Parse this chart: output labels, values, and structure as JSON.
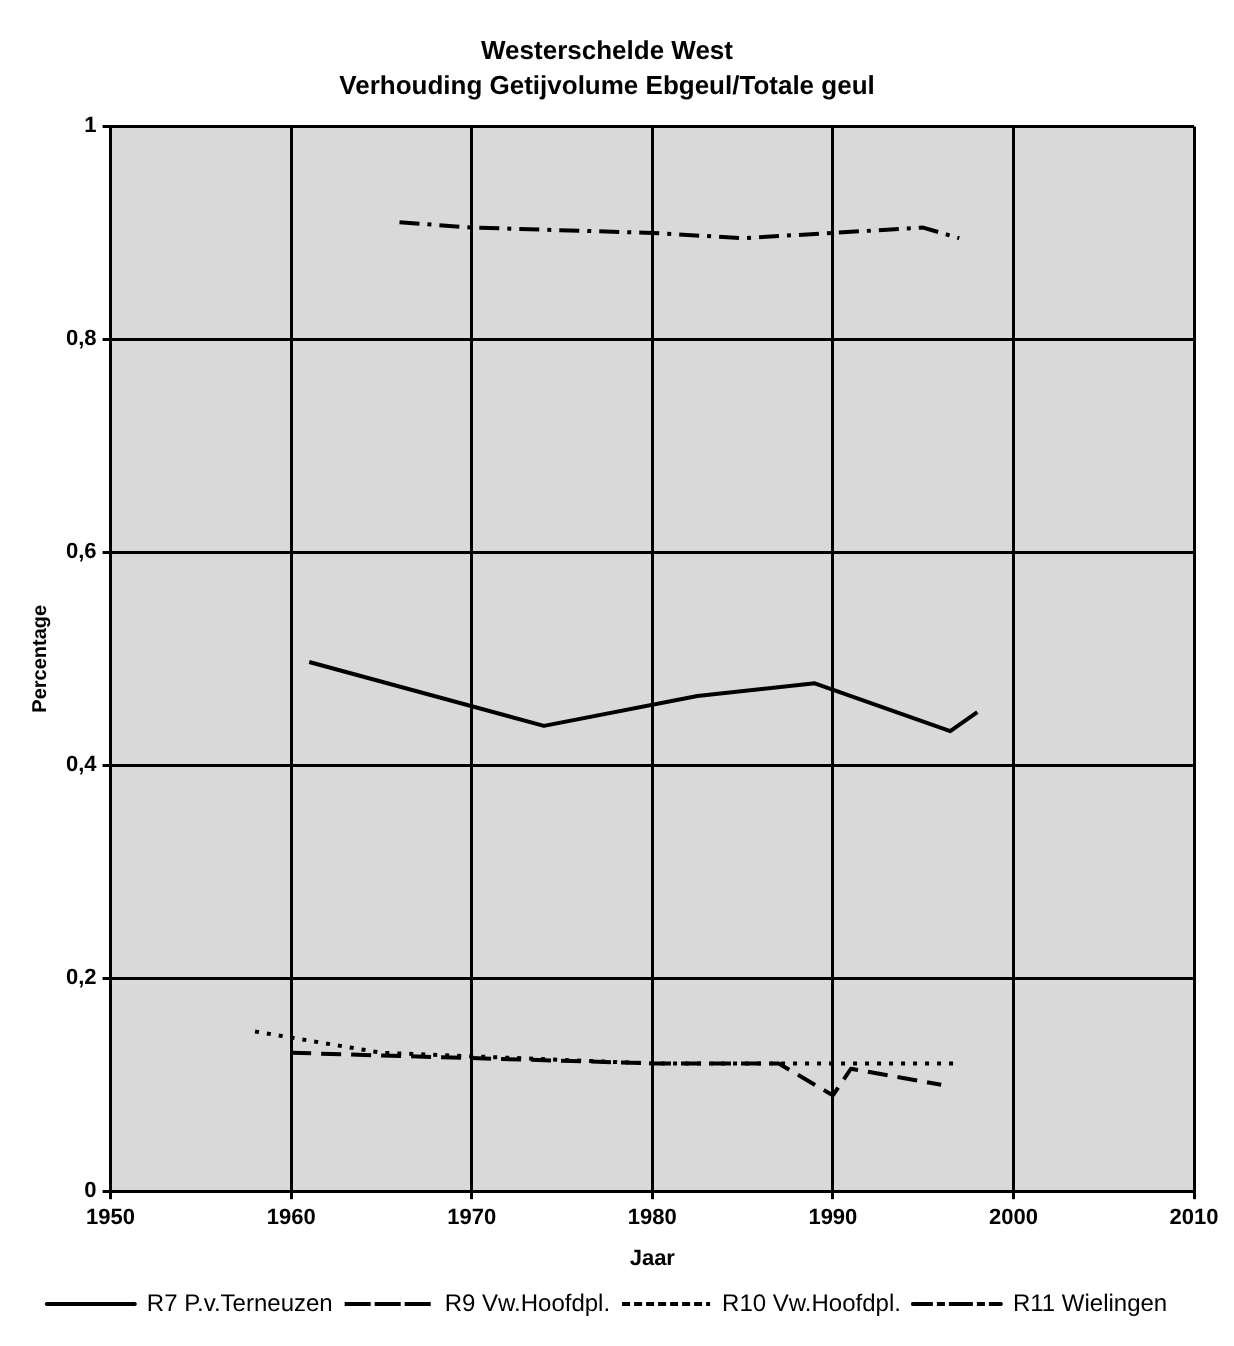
{
  "chart_data": {
    "type": "line",
    "title": "Westerschelde West",
    "subtitle": "Verhouding Getijvolume Ebgeul/Totale geul",
    "xlabel": "Jaar",
    "ylabel": "Percentage",
    "xlim": [
      1950,
      2010
    ],
    "xticks": [
      1950,
      1960,
      1970,
      1980,
      1990,
      2000,
      2010
    ],
    "ylim": [
      0,
      1
    ],
    "yticks": [
      0,
      {
        "value": 0.2,
        "label": "0,2"
      },
      {
        "value": 0.4,
        "label": "0,4"
      },
      {
        "value": 0.6,
        "label": "0,6"
      },
      {
        "value": 0.8,
        "label": "0,8"
      },
      1
    ],
    "grid": true,
    "legend": "bottom",
    "marker": "none",
    "series": [
      {
        "name": "R7 P.v.Terneuzen",
        "color": "#000000",
        "line_style": "solid",
        "x": [
          1961,
          1974,
          1982.5,
          1989,
          1996.5,
          1998
        ],
        "values": [
          0.497,
          0.437,
          0.465,
          0.477,
          0.432,
          0.45
        ]
      },
      {
        "name": "R9 Vw.Hoofdpl.",
        "color": "#000000",
        "line_style": "dashed",
        "x": [
          1960,
          1970,
          1980,
          1987,
          1990,
          1991,
          1996
        ],
        "values": [
          0.13,
          0.125,
          0.12,
          0.12,
          0.09,
          0.115,
          0.1
        ]
      },
      {
        "name": "R10 Vw.Hoofdpl.",
        "color": "#000000",
        "line_style": "dotted",
        "x": [
          1958,
          1965,
          1980,
          1990,
          1997
        ],
        "values": [
          0.15,
          0.13,
          0.12,
          0.12,
          0.12
        ]
      },
      {
        "name": "R11 Wielingen",
        "color": "#000000",
        "line_style": "dashdot",
        "x": [
          1966,
          1970,
          1980,
          1985,
          1990,
          1995,
          1997
        ],
        "values": [
          0.91,
          0.905,
          0.9,
          0.895,
          0.9,
          0.905,
          0.895
        ]
      }
    ]
  }
}
